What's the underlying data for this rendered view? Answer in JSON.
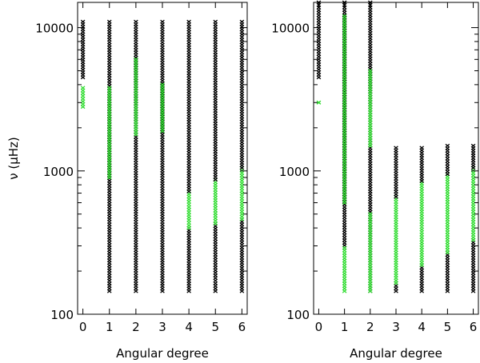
{
  "colors": {
    "black": "#000000",
    "green": "#33dd33"
  },
  "chart_data": [
    {
      "type": "scatter",
      "title": "",
      "xlabel": "Angular degree",
      "ylabel": "ν (μHz)",
      "xlim": [
        -0.2,
        6.2
      ],
      "ylim": [
        100,
        15000
      ],
      "yscale": "log",
      "xticks": [
        "0",
        "1",
        "2",
        "3",
        "4",
        "5",
        "6"
      ],
      "yticks": [
        "100",
        "1000",
        "10000"
      ],
      "grid": false,
      "columns": [
        {
          "l": 0,
          "segments": [
            {
              "color": "black",
              "from": 4500,
              "to": 11000
            },
            {
              "color": "green",
              "from": 2800,
              "to": 3800
            }
          ]
        },
        {
          "l": 1,
          "segments": [
            {
              "color": "black",
              "from": 145,
              "to": 11000
            },
            {
              "color": "green",
              "from": 900,
              "to": 3800
            }
          ]
        },
        {
          "l": 2,
          "segments": [
            {
              "color": "black",
              "from": 145,
              "to": 11000
            },
            {
              "color": "green",
              "from": 1800,
              "to": 6000
            }
          ]
        },
        {
          "l": 3,
          "segments": [
            {
              "color": "black",
              "from": 145,
              "to": 11000
            },
            {
              "color": "green",
              "from": 1900,
              "to": 4000
            }
          ]
        },
        {
          "l": 4,
          "segments": [
            {
              "color": "black",
              "from": 145,
              "to": 400
            },
            {
              "color": "green",
              "from": 400,
              "to": 720
            },
            {
              "color": "black",
              "from": 720,
              "to": 11000
            }
          ]
        },
        {
          "l": 5,
          "segments": [
            {
              "color": "black",
              "from": 145,
              "to": 430
            },
            {
              "color": "green",
              "from": 430,
              "to": 870
            },
            {
              "color": "black",
              "from": 870,
              "to": 11000
            }
          ]
        },
        {
          "l": 6,
          "segments": [
            {
              "color": "black",
              "from": 145,
              "to": 460
            },
            {
              "color": "green",
              "from": 460,
              "to": 1050
            },
            {
              "color": "black",
              "from": 1050,
              "to": 11000
            }
          ]
        }
      ]
    },
    {
      "type": "scatter",
      "title": "",
      "xlabel": "Angular degree",
      "ylabel": "",
      "xlim": [
        -0.2,
        6.2
      ],
      "ylim": [
        100,
        15000
      ],
      "yscale": "log",
      "xticks": [
        "0",
        "1",
        "2",
        "3",
        "4",
        "5",
        "6"
      ],
      "yticks": [
        "100",
        "1000",
        "10000"
      ],
      "grid": false,
      "columns": [
        {
          "l": 0,
          "segments": [
            {
              "color": "black",
              "from": 4500,
              "to": 15000
            },
            {
              "color": "green",
              "from": 3000,
              "to": 3000
            }
          ]
        },
        {
          "l": 1,
          "segments": [
            {
              "color": "black",
              "from": 290,
              "to": 15000
            },
            {
              "color": "green",
              "from": 145,
              "to": 290
            },
            {
              "color": "green",
              "from": 600,
              "to": 12000
            }
          ]
        },
        {
          "l": 2,
          "segments": [
            {
              "color": "black",
              "from": 145,
              "to": 15000
            },
            {
              "color": "green",
              "from": 145,
              "to": 500
            },
            {
              "color": "green",
              "from": 1500,
              "to": 5000
            }
          ]
        },
        {
          "l": 3,
          "segments": [
            {
              "color": "black",
              "from": 145,
              "to": 165
            },
            {
              "color": "green",
              "from": 165,
              "to": 660
            },
            {
              "color": "black",
              "from": 660,
              "to": 1450
            }
          ]
        },
        {
          "l": 4,
          "segments": [
            {
              "color": "black",
              "from": 145,
              "to": 220
            },
            {
              "color": "green",
              "from": 220,
              "to": 850
            },
            {
              "color": "black",
              "from": 850,
              "to": 1450
            }
          ]
        },
        {
          "l": 5,
          "segments": [
            {
              "color": "black",
              "from": 145,
              "to": 270
            },
            {
              "color": "green",
              "from": 270,
              "to": 950
            },
            {
              "color": "black",
              "from": 950,
              "to": 1500
            }
          ]
        },
        {
          "l": 6,
          "segments": [
            {
              "color": "black",
              "from": 145,
              "to": 330
            },
            {
              "color": "green",
              "from": 330,
              "to": 1050
            },
            {
              "color": "black",
              "from": 1050,
              "to": 1500
            }
          ]
        }
      ]
    }
  ]
}
